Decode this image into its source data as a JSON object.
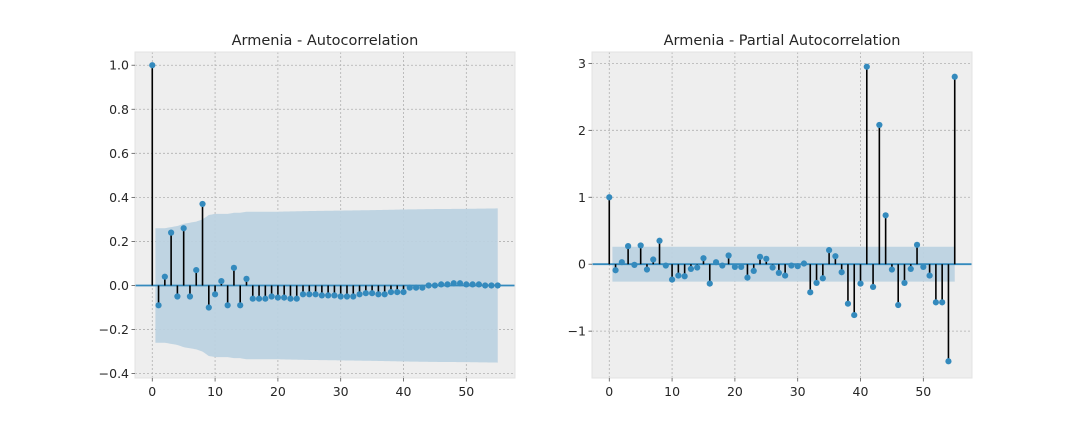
{
  "chart_data": [
    {
      "type": "stem",
      "title": "Armenia - Autocorrelation",
      "xlabel": "",
      "ylabel": "",
      "xlim": [
        -2.75,
        57.75
      ],
      "ylim": [
        -0.42,
        1.06
      ],
      "xticks": [
        0,
        10,
        20,
        30,
        40,
        50
      ],
      "yticks": [
        -0.4,
        -0.2,
        0.0,
        0.2,
        0.4,
        0.6,
        0.8,
        1.0
      ],
      "ytick_labels": [
        "−0.4",
        "−0.2",
        "0.0",
        "0.2",
        "0.4",
        "0.6",
        "0.8",
        "1.0"
      ],
      "grid": true,
      "colors": {
        "marker": "#348abd",
        "stem": "#000000",
        "band": "#bcd2e0",
        "zero_line": "#348abd",
        "background": "#eeeeee",
        "grid": "#b0b0b0"
      },
      "lags": [
        0,
        1,
        2,
        3,
        4,
        5,
        6,
        7,
        8,
        9,
        10,
        11,
        12,
        13,
        14,
        15,
        16,
        17,
        18,
        19,
        20,
        21,
        22,
        23,
        24,
        25,
        26,
        27,
        28,
        29,
        30,
        31,
        32,
        33,
        34,
        35,
        36,
        37,
        38,
        39,
        40,
        41,
        42,
        43,
        44,
        45,
        46,
        47,
        48,
        49,
        50,
        51,
        52,
        53,
        54,
        55
      ],
      "values": [
        1.0,
        -0.09,
        0.04,
        0.24,
        -0.05,
        0.26,
        -0.05,
        0.07,
        0.37,
        -0.1,
        -0.04,
        0.02,
        -0.09,
        0.08,
        -0.09,
        0.03,
        -0.06,
        -0.06,
        -0.06,
        -0.05,
        -0.055,
        -0.055,
        -0.06,
        -0.06,
        -0.04,
        -0.04,
        -0.04,
        -0.045,
        -0.045,
        -0.045,
        -0.05,
        -0.05,
        -0.05,
        -0.04,
        -0.035,
        -0.035,
        -0.04,
        -0.04,
        -0.03,
        -0.03,
        -0.03,
        -0.01,
        -0.01,
        -0.01,
        0.0,
        0.0,
        0.005,
        0.005,
        0.01,
        0.01,
        0.005,
        0.005,
        0.005,
        0.0,
        0.0,
        0.0
      ],
      "confidence_band": {
        "lags": [
          1,
          2,
          3,
          4,
          5,
          6,
          7,
          8,
          9,
          10,
          11,
          12,
          13,
          14,
          15,
          20,
          25,
          30,
          35,
          40,
          45,
          50,
          55
        ],
        "upper": [
          0.26,
          0.26,
          0.265,
          0.27,
          0.28,
          0.285,
          0.29,
          0.3,
          0.32,
          0.325,
          0.325,
          0.325,
          0.33,
          0.33,
          0.335,
          0.335,
          0.338,
          0.34,
          0.342,
          0.345,
          0.347,
          0.348,
          0.35
        ]
      }
    },
    {
      "type": "stem",
      "title": "Armenia - Partial Autocorrelation",
      "xlabel": "",
      "ylabel": "",
      "xlim": [
        -2.75,
        57.75
      ],
      "ylim": [
        -1.7,
        3.17
      ],
      "xticks": [
        0,
        10,
        20,
        30,
        40,
        50
      ],
      "yticks": [
        -1,
        0,
        1,
        2,
        3
      ],
      "ytick_labels": [
        "−1",
        "0",
        "1",
        "2",
        "3"
      ],
      "grid": true,
      "colors": {
        "marker": "#348abd",
        "stem": "#000000",
        "band": "#bcd2e0",
        "zero_line": "#348abd",
        "background": "#eeeeee",
        "grid": "#b0b0b0"
      },
      "lags": [
        0,
        1,
        2,
        3,
        4,
        5,
        6,
        7,
        8,
        9,
        10,
        11,
        12,
        13,
        14,
        15,
        16,
        17,
        18,
        19,
        20,
        21,
        22,
        23,
        24,
        25,
        26,
        27,
        28,
        29,
        30,
        31,
        32,
        33,
        34,
        35,
        36,
        37,
        38,
        39,
        40,
        41,
        42,
        43,
        44,
        45,
        46,
        47,
        48,
        49,
        50,
        51,
        52,
        53,
        54,
        55
      ],
      "values": [
        1.0,
        -0.09,
        0.03,
        0.27,
        -0.01,
        0.28,
        -0.08,
        0.07,
        0.35,
        -0.02,
        -0.23,
        -0.17,
        -0.18,
        -0.07,
        -0.05,
        0.09,
        -0.29,
        0.03,
        -0.02,
        0.13,
        -0.04,
        -0.04,
        -0.2,
        -0.1,
        0.11,
        0.08,
        -0.05,
        -0.13,
        -0.17,
        -0.02,
        -0.03,
        0.01,
        -0.42,
        -0.28,
        -0.21,
        0.21,
        0.12,
        -0.12,
        -0.59,
        -0.76,
        -0.29,
        2.95,
        -0.34,
        2.08,
        0.73,
        -0.08,
        -0.61,
        -0.28,
        -0.07,
        0.29,
        -0.04,
        -0.17,
        -0.57,
        -0.57,
        -1.45,
        2.8
      ],
      "confidence_band": {
        "lags": [
          1,
          55
        ],
        "upper": [
          0.26,
          0.26
        ]
      }
    }
  ]
}
